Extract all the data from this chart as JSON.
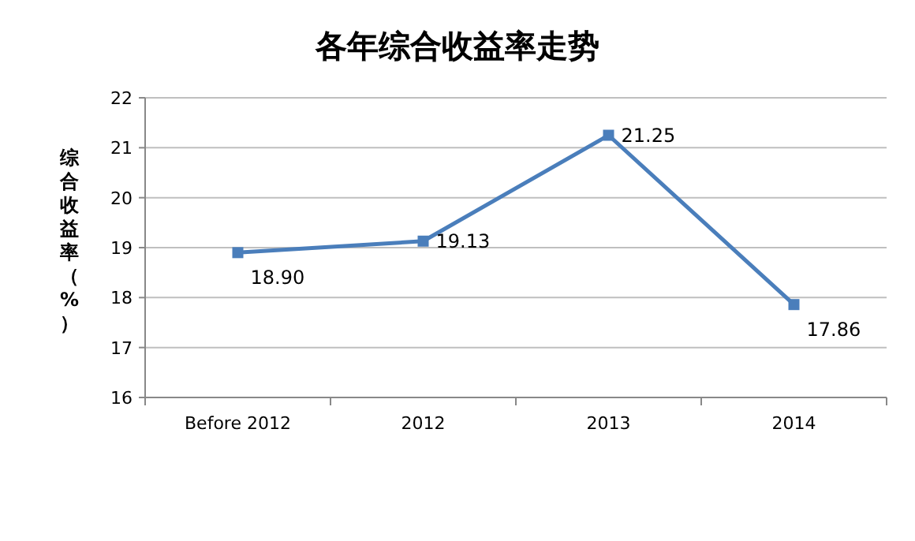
{
  "chart_data": {
    "type": "line",
    "title": "各年综合收益率走势",
    "ylabel": "综合收益率（%）",
    "categories": [
      "Before 2012",
      "2012",
      "2013",
      "2014"
    ],
    "series": [
      {
        "color": "#4a7ebb",
        "values": [
          18.9,
          19.13,
          21.25,
          17.86
        ],
        "value_labels": [
          "18.90",
          "19.13",
          "21.25",
          "17.86"
        ]
      }
    ],
    "ylim": [
      16,
      22
    ],
    "yticks": [
      16,
      17,
      18,
      19,
      20,
      21,
      22
    ],
    "grid": "y",
    "marker": "square"
  }
}
